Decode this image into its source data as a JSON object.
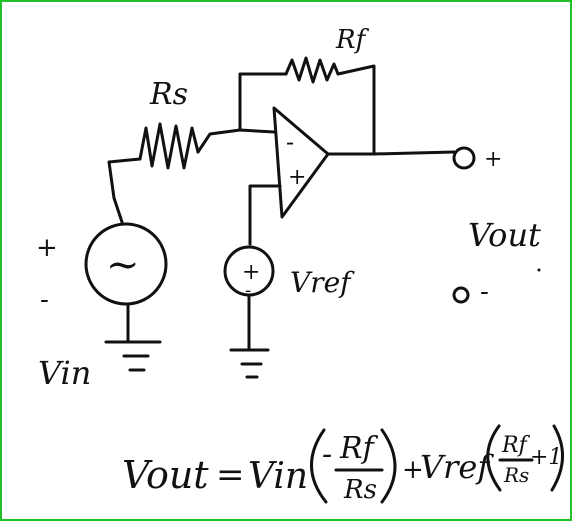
{
  "colors": {
    "ink": "#111111",
    "frame": "#22c02a",
    "background": "#ffffff"
  },
  "labels": {
    "rf": "Rf",
    "rs": "Rs",
    "opamp_minus": "-",
    "opamp_plus": "+",
    "vin_plus": "+",
    "vin_minus": "-",
    "vin": "Vin",
    "vref_plus": "+",
    "vref_minus": "-",
    "vref": "Vref",
    "out_plus_terminal": "+",
    "out_minus_terminal": "-",
    "vout": "Vout",
    "source_symbol": "~"
  },
  "equation": {
    "lhs": "Vout",
    "eq": "=",
    "term1_var": "Vin",
    "term1_sign": "-",
    "term1_num": "Rf",
    "term1_den": "Rs",
    "plus": "+",
    "term2_var": "Vref",
    "term2_num": "Rf",
    "term2_den": "Rs",
    "term2_add": "+1"
  }
}
